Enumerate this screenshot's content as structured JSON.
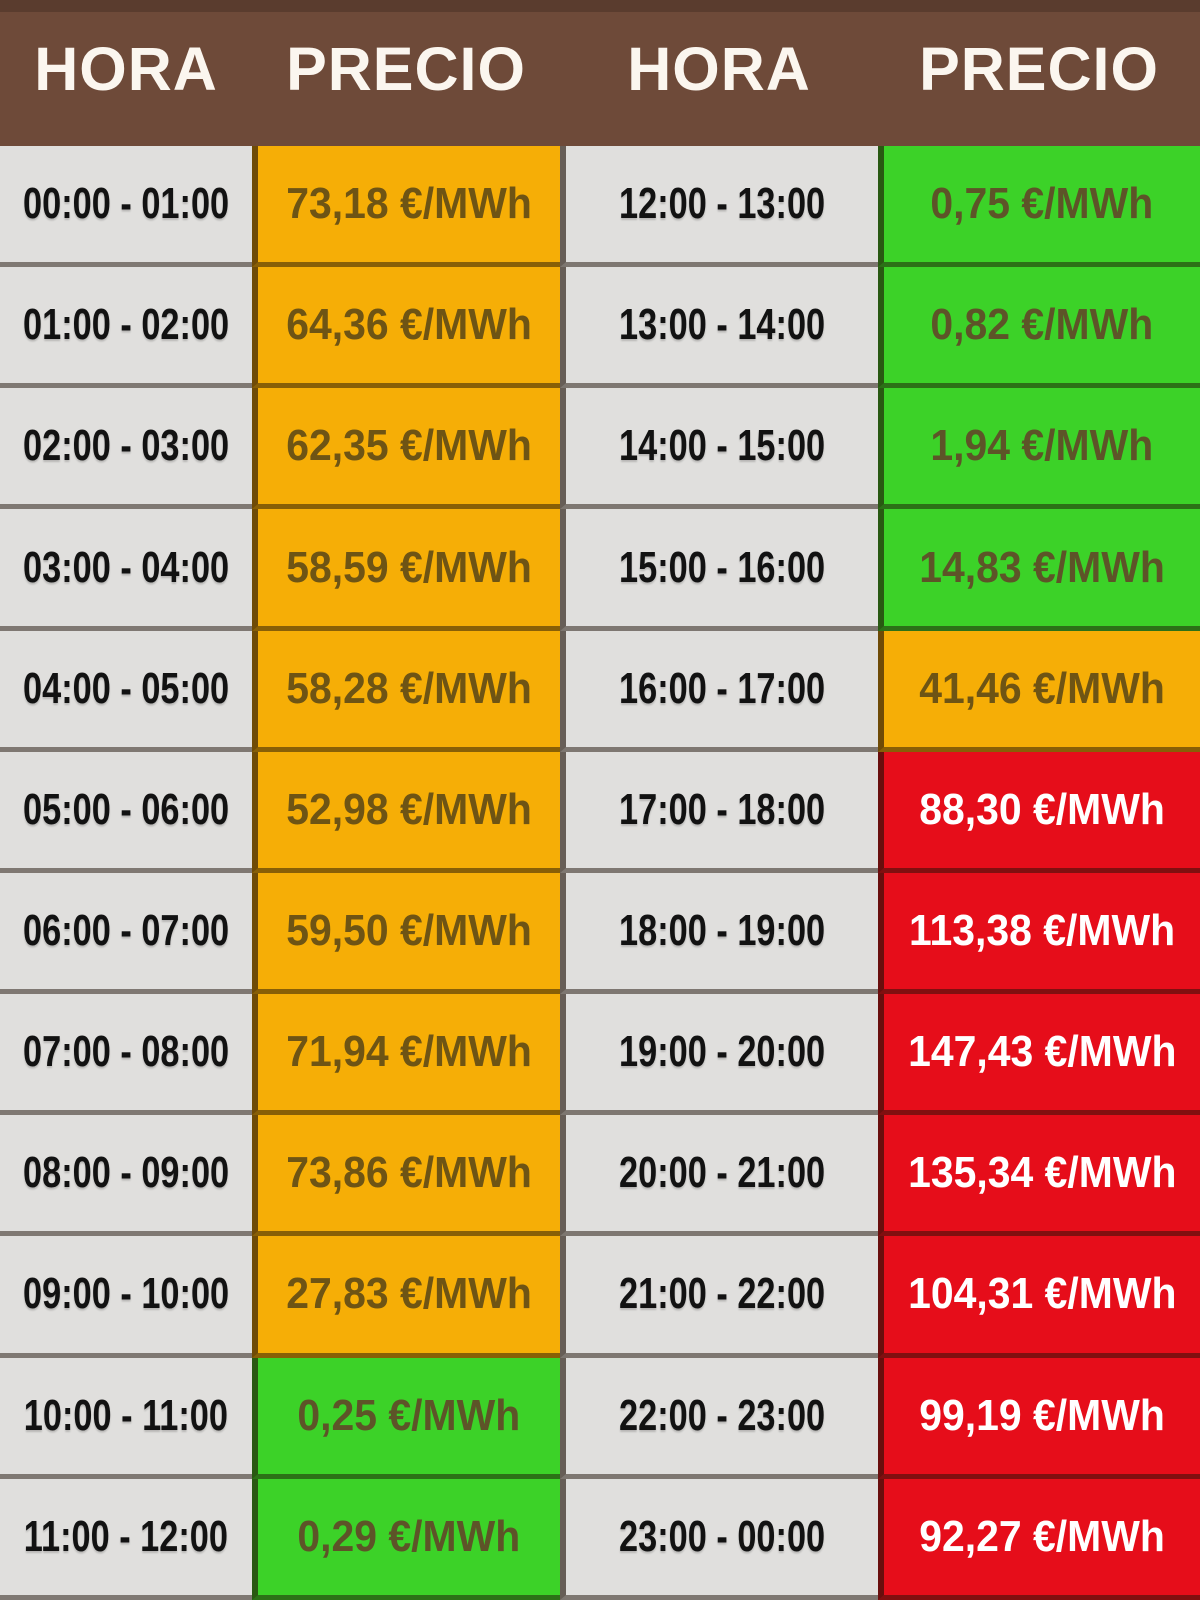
{
  "header": {
    "columns": [
      "HORA",
      "PRECIO",
      "HORA",
      "PRECIO"
    ]
  },
  "unit": "€/MWh",
  "colors": {
    "header_bg": "#6E4A39",
    "header_text": "#FBF6EF",
    "time_bg": "#E0DFDD",
    "time_text": "#121212",
    "mid_bg": "#F6AE06",
    "mid_text": "#6E5414",
    "low_bg": "#3CD228",
    "low_text": "#5D5428",
    "high_bg": "#E60D1A",
    "high_text": "#FFFFFF"
  },
  "rows": [
    {
      "time_left": "00:00 - 01:00",
      "price_left": "73,18 €/MWh",
      "level_left": "mid",
      "time_right": "12:00 - 13:00",
      "price_right": "0,75 €/MWh",
      "level_right": "low"
    },
    {
      "time_left": "01:00 - 02:00",
      "price_left": "64,36 €/MWh",
      "level_left": "mid",
      "time_right": "13:00 - 14:00",
      "price_right": "0,82 €/MWh",
      "level_right": "low"
    },
    {
      "time_left": "02:00 - 03:00",
      "price_left": "62,35 €/MWh",
      "level_left": "mid",
      "time_right": "14:00 - 15:00",
      "price_right": "1,94 €/MWh",
      "level_right": "low"
    },
    {
      "time_left": "03:00 - 04:00",
      "price_left": "58,59 €/MWh",
      "level_left": "mid",
      "time_right": "15:00 - 16:00",
      "price_right": "14,83 €/MWh",
      "level_right": "low"
    },
    {
      "time_left": "04:00 - 05:00",
      "price_left": "58,28 €/MWh",
      "level_left": "mid",
      "time_right": "16:00 - 17:00",
      "price_right": "41,46 €/MWh",
      "level_right": "mid"
    },
    {
      "time_left": "05:00 - 06:00",
      "price_left": "52,98 €/MWh",
      "level_left": "mid",
      "time_right": "17:00 - 18:00",
      "price_right": "88,30 €/MWh",
      "level_right": "high"
    },
    {
      "time_left": "06:00 - 07:00",
      "price_left": "59,50 €/MWh",
      "level_left": "mid",
      "time_right": "18:00 - 19:00",
      "price_right": "113,38 €/MWh",
      "level_right": "high"
    },
    {
      "time_left": "07:00 - 08:00",
      "price_left": "71,94 €/MWh",
      "level_left": "mid",
      "time_right": "19:00 - 20:00",
      "price_right": "147,43 €/MWh",
      "level_right": "high"
    },
    {
      "time_left": "08:00 - 09:00",
      "price_left": "73,86 €/MWh",
      "level_left": "mid",
      "time_right": "20:00 - 21:00",
      "price_right": "135,34 €/MWh",
      "level_right": "high"
    },
    {
      "time_left": "09:00 - 10:00",
      "price_left": "27,83 €/MWh",
      "level_left": "mid",
      "time_right": "21:00 - 22:00",
      "price_right": "104,31 €/MWh",
      "level_right": "high"
    },
    {
      "time_left": "10:00 - 11:00",
      "price_left": "0,25 €/MWh",
      "level_left": "low",
      "time_right": "22:00 - 23:00",
      "price_right": "99,19 €/MWh",
      "level_right": "high"
    },
    {
      "time_left": "11:00 - 12:00",
      "price_left": "0,29 €/MWh",
      "level_left": "low",
      "time_right": "23:00 - 00:00",
      "price_right": "92,27 €/MWh",
      "level_right": "high"
    }
  ]
}
